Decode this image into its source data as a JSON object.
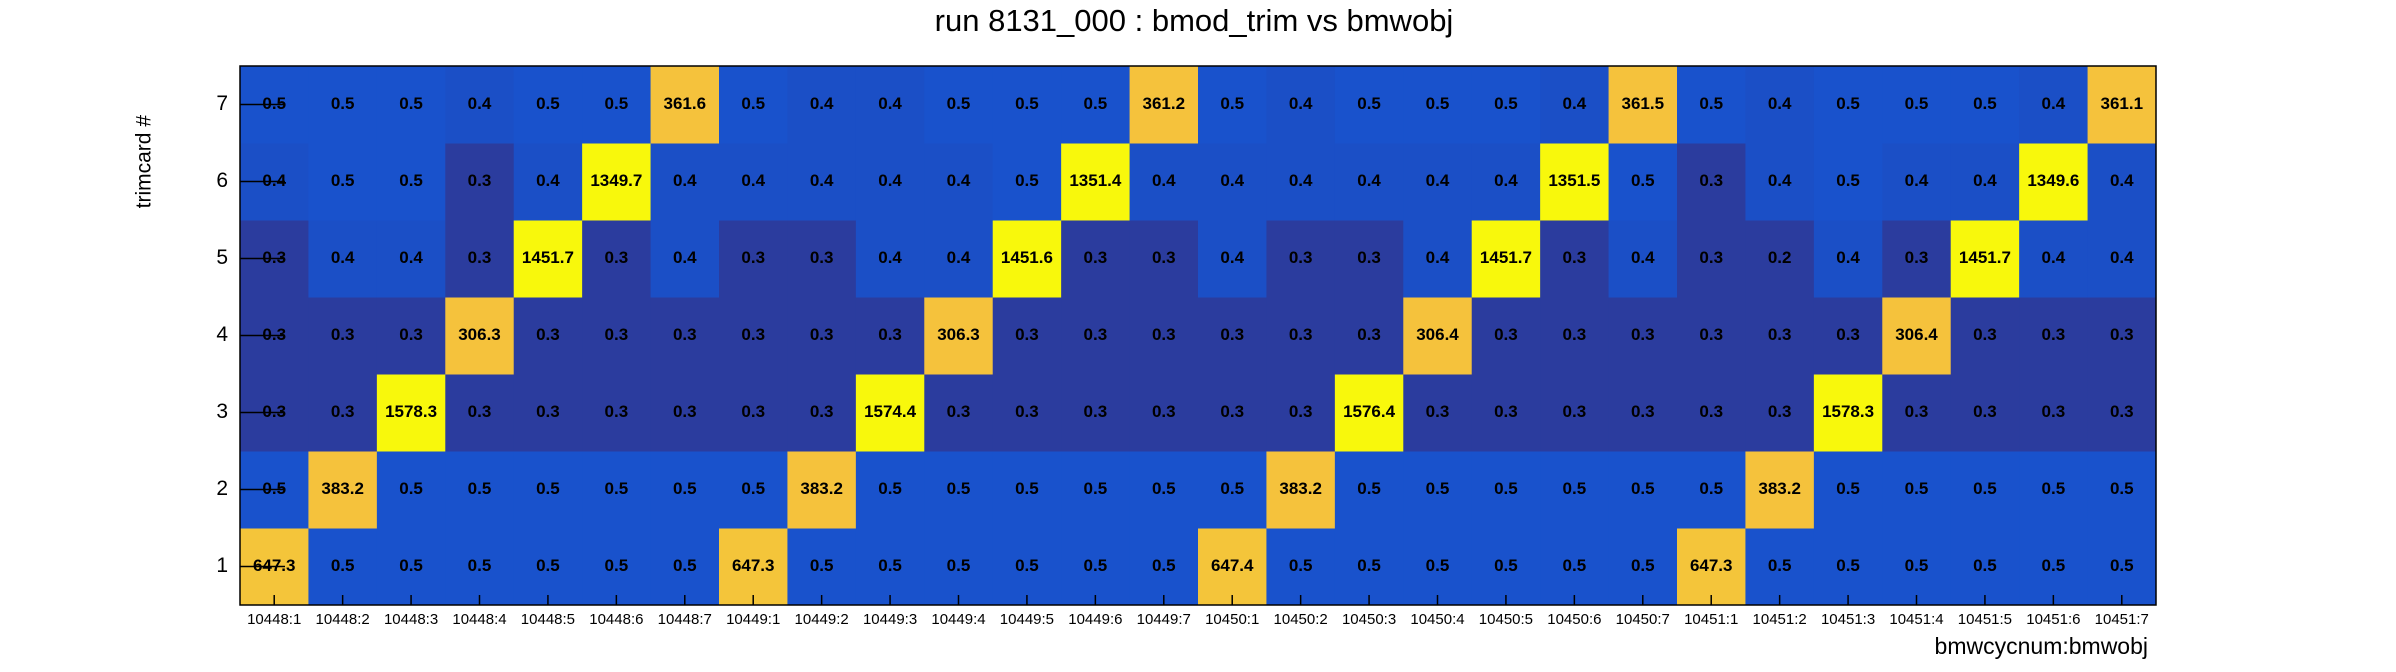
{
  "chart_data": {
    "type": "heatmap",
    "title": "run 8131_000 : bmod_trim vs bmwobj",
    "x_label": "bmwcycnum:bmwobj",
    "y_label": "trimcard #",
    "x_categories": [
      "10448:1",
      "10448:2",
      "10448:3",
      "10448:4",
      "10448:5",
      "10448:6",
      "10448:7",
      "10449:1",
      "10449:2",
      "10449:3",
      "10449:4",
      "10449:5",
      "10449:6",
      "10449:7",
      "10450:1",
      "10450:2",
      "10450:3",
      "10450:4",
      "10450:5",
      "10450:6",
      "10450:7",
      "10451:1",
      "10451:2",
      "10451:3",
      "10451:4",
      "10451:5",
      "10451:6",
      "10451:7"
    ],
    "y_categories": [
      "1",
      "2",
      "3",
      "4",
      "5",
      "6",
      "7"
    ],
    "values": [
      [
        647.3,
        0.5,
        0.5,
        0.5,
        0.5,
        0.5,
        0.5,
        647.3,
        0.5,
        0.5,
        0.5,
        0.5,
        0.5,
        0.5,
        647.4,
        0.5,
        0.5,
        0.5,
        0.5,
        0.5,
        0.5,
        647.3,
        0.5,
        0.5,
        0.5,
        0.5,
        0.5,
        0.5
      ],
      [
        0.5,
        383.2,
        0.5,
        0.5,
        0.5,
        0.5,
        0.5,
        0.5,
        383.2,
        0.5,
        0.5,
        0.5,
        0.5,
        0.5,
        0.5,
        383.2,
        0.5,
        0.5,
        0.5,
        0.5,
        0.5,
        0.5,
        383.2,
        0.5,
        0.5,
        0.5,
        0.5,
        0.5
      ],
      [
        0.3,
        0.3,
        1578.3,
        0.3,
        0.3,
        0.3,
        0.3,
        0.3,
        0.3,
        1574.4,
        0.3,
        0.3,
        0.3,
        0.3,
        0.3,
        0.3,
        1576.4,
        0.3,
        0.3,
        0.3,
        0.3,
        0.3,
        0.3,
        1578.3,
        0.3,
        0.3,
        0.3,
        0.3
      ],
      [
        0.3,
        0.3,
        0.3,
        306.3,
        0.3,
        0.3,
        0.3,
        0.3,
        0.3,
        0.3,
        306.3,
        0.3,
        0.3,
        0.3,
        0.3,
        0.3,
        0.3,
        306.4,
        0.3,
        0.3,
        0.3,
        0.3,
        0.3,
        0.3,
        306.4,
        0.3,
        0.3,
        0.3
      ],
      [
        0.3,
        0.4,
        0.4,
        0.3,
        1451.7,
        0.3,
        0.4,
        0.3,
        0.3,
        0.4,
        0.4,
        1451.6,
        0.3,
        0.3,
        0.4,
        0.3,
        0.3,
        0.4,
        1451.7,
        0.3,
        0.4,
        0.3,
        0.2,
        0.4,
        0.3,
        1451.7,
        0.4,
        0.4
      ],
      [
        0.4,
        0.5,
        0.5,
        0.3,
        0.4,
        1349.7,
        0.4,
        0.4,
        0.4,
        0.4,
        0.4,
        0.5,
        1351.4,
        0.4,
        0.4,
        0.4,
        0.4,
        0.4,
        0.4,
        1351.5,
        0.5,
        0.3,
        0.4,
        0.5,
        0.4,
        0.4,
        1349.6,
        0.4
      ],
      [
        0.5,
        0.5,
        0.5,
        0.4,
        0.5,
        0.5,
        361.6,
        0.5,
        0.4,
        0.4,
        0.5,
        0.5,
        0.5,
        361.2,
        0.5,
        0.4,
        0.5,
        0.5,
        0.5,
        0.4,
        361.5,
        0.5,
        0.4,
        0.5,
        0.5,
        0.5,
        0.4,
        361.1
      ]
    ],
    "z_scale": "log",
    "colormap": [
      "#2b3c9e",
      "#1b4fc6",
      "#1952cc",
      "#1a5ad0",
      "#1a64d2",
      "#2270d0",
      "#2a80cc",
      "#3190c0",
      "#3aa0b0",
      "#50aea0",
      "#70b890",
      "#90bd80",
      "#b0c070",
      "#c8c060",
      "#dcc050",
      "#ecc044",
      "#f5c23c",
      "#f5c33b",
      "#f4c53a",
      "#f8f80c"
    ]
  }
}
